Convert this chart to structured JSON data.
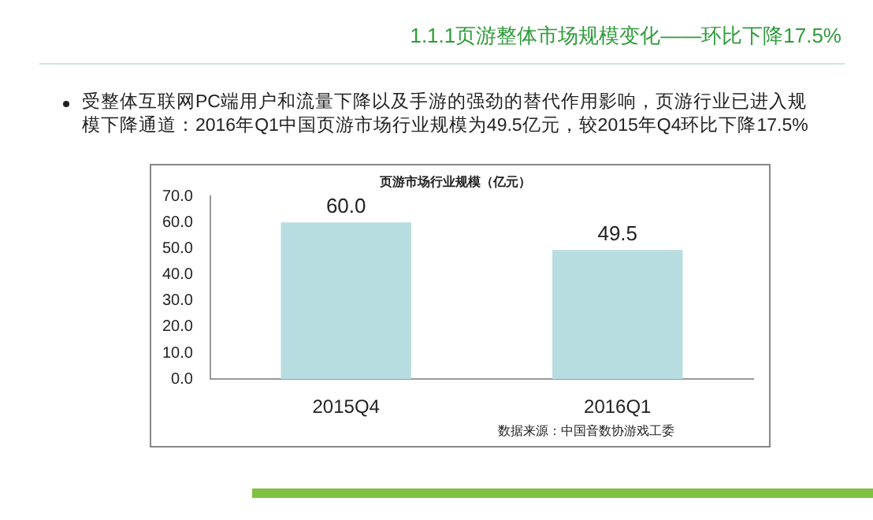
{
  "chart_data": {
    "type": "bar",
    "title": "页游市场行业规模（亿元）",
    "subtitle": "1.1.1页游整体市场规模变化——环比下降17.5%",
    "annotations": [
      "受整体互联网PC端用户和流量下降以及手游的强劲的替代作用影响，页游行业已进入规模下降通道：2016年Q1中国页游市场行业规模为49.5亿元，较2015年Q4环比下降17.5%",
      "数据来源：中国音数协游戏工委"
    ],
    "categories": [
      "2015Q4",
      "2016Q1"
    ],
    "values": [
      60.0,
      49.5
    ],
    "color": "#b7dde0",
    "ylim": [
      0,
      70
    ],
    "yticks": [
      {
        "value": 0,
        "label": "0.0"
      },
      {
        "value": 10,
        "label": "10.0"
      },
      {
        "value": 20,
        "label": "20.0"
      },
      {
        "value": 30,
        "label": "30.0"
      },
      {
        "value": 40,
        "label": "40.0"
      },
      {
        "value": 50,
        "label": "50.0"
      },
      {
        "value": 60,
        "label": "60.0"
      },
      {
        "value": 70,
        "label": "70.0"
      }
    ],
    "value_labels": [
      "60.0",
      "49.5"
    ],
    "grid": false,
    "legend": false
  }
}
